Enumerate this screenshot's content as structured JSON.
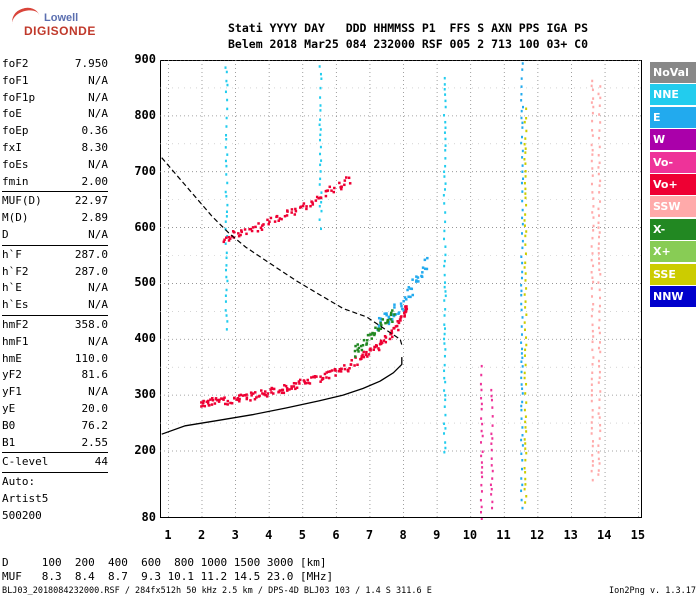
{
  "logo": {
    "line1": "Lowell",
    "line2": "DIGISONDE"
  },
  "header": {
    "line1": "Stati YYYY DAY   DDD HHMMSS P1  FFS S AXN PPS IGA PS",
    "line2": "Belem 2018 Mar25 084 232000 RSF 005 2 713 100 03+ C0"
  },
  "params": {
    "group1": [
      [
        "foF2",
        "7.950"
      ],
      [
        "foF1",
        "N/A"
      ],
      [
        "foF1p",
        "N/A"
      ],
      [
        "foE",
        "N/A"
      ],
      [
        "foEp",
        "0.36"
      ],
      [
        "fxI",
        "8.30"
      ],
      [
        "foEs",
        "N/A"
      ],
      [
        "fmin",
        "2.00"
      ]
    ],
    "group2": [
      [
        "MUF(D)",
        "22.97"
      ],
      [
        "M(D)",
        "2.89"
      ],
      [
        "D",
        "N/A"
      ]
    ],
    "group3": [
      [
        "h`F",
        "287.0"
      ],
      [
        "h`F2",
        "287.0"
      ],
      [
        "h`E",
        "N/A"
      ],
      [
        "h`Es",
        "N/A"
      ]
    ],
    "group4": [
      [
        "hmF2",
        "358.0"
      ],
      [
        "hmF1",
        "N/A"
      ],
      [
        "hmE",
        "110.0"
      ],
      [
        "yF2",
        "81.6"
      ],
      [
        "yF1",
        "N/A"
      ],
      [
        "yE",
        "20.0"
      ],
      [
        "B0",
        "76.2"
      ],
      [
        "B1",
        "2.55"
      ]
    ],
    "group5": [
      [
        "C-level",
        "44"
      ]
    ],
    "group6": [
      "Auto:",
      "Artist5",
      "500200"
    ]
  },
  "legend": [
    {
      "label": "NoVal",
      "color": "#888888"
    },
    {
      "label": "NNE",
      "color": "#22ccee"
    },
    {
      "label": "E",
      "color": "#22aaee"
    },
    {
      "label": "W",
      "color": "#aa00aa"
    },
    {
      "label": "Vo-",
      "color": "#ee3399"
    },
    {
      "label": "Vo+",
      "color": "#ee0033"
    },
    {
      "label": "SSW",
      "color": "#ffaaaa"
    },
    {
      "label": "X-",
      "color": "#228822"
    },
    {
      "label": "X+",
      "color": "#88cc55"
    },
    {
      "label": "SSE",
      "color": "#cccc00"
    },
    {
      "label": "NNW",
      "color": "#0000cc"
    }
  ],
  "footer": {
    "line1": "D     100  200  400  600  800 1000 1500 3000 [km]",
    "line2": "MUF   8.3  8.4  8.7  9.3 10.1 11.2 14.5 23.0 [MHz]",
    "file": "BLJ03_2018084232000.RSF / 284fx512h 50 kHz 2.5 km / DPS-4D BLJ03 103 / 1.4 S 311.6 E",
    "version": "Ion2Png v. 1.3.17"
  },
  "chart_data": {
    "type": "scatter",
    "xlim": [
      0.75,
      15.1
    ],
    "ylim": [
      80,
      900
    ],
    "x_ticks": [
      1,
      2,
      3,
      4,
      5,
      6,
      7,
      8,
      9,
      10,
      11,
      12,
      13,
      14,
      15
    ],
    "y_ticks": [
      80,
      200,
      300,
      400,
      500,
      600,
      700,
      800,
      900
    ],
    "x_major_grid": [
      1,
      2,
      3,
      4,
      5,
      6,
      7,
      8,
      9,
      10,
      11,
      12,
      13,
      14,
      15
    ],
    "y_major_grid": [
      200,
      300,
      400,
      500,
      600,
      700,
      800,
      900
    ],
    "y_minor_grid": [
      250,
      350,
      450,
      550,
      650,
      750,
      850
    ],
    "grid": true,
    "grid_style": "dotted",
    "profile_curve": {
      "name": "profile",
      "x": [
        0.8,
        1.5,
        2.5,
        3.5,
        4.5,
        5.5,
        6.2,
        6.8,
        7.3,
        7.7,
        7.95,
        7.95
      ],
      "y": [
        230,
        245,
        255,
        265,
        277,
        290,
        300,
        312,
        325,
        340,
        355,
        368
      ]
    },
    "dashed_curve": {
      "name": "dashed",
      "x": [
        0.8,
        1.3,
        1.8,
        2.3,
        2.8,
        3.3,
        3.8,
        4.3,
        4.8,
        5.5,
        6.2,
        6.9,
        7.4,
        7.9,
        7.95
      ],
      "y": [
        725,
        690,
        655,
        620,
        590,
        565,
        545,
        525,
        505,
        480,
        455,
        440,
        420,
        400,
        390
      ]
    },
    "o_trace": {
      "color": "#ee0033",
      "x": [
        1.9,
        2.3,
        2.8,
        3.3,
        3.8,
        4.3,
        4.8,
        5.3,
        5.8,
        6.3,
        6.8,
        7.2,
        7.6,
        7.9,
        8.1
      ],
      "y": [
        285,
        290,
        292,
        298,
        305,
        312,
        320,
        330,
        340,
        350,
        372,
        390,
        410,
        440,
        460
      ]
    },
    "x_trace": {
      "color": "#228822",
      "x": [
        6.5,
        6.8,
        7.1,
        7.4,
        7.7
      ],
      "y": [
        380,
        395,
        410,
        430,
        450
      ]
    },
    "multihop_trace": {
      "color": "#ee0033",
      "x": [
        2.6,
        3.0,
        3.5,
        4.0,
        4.5,
        5.0,
        5.5,
        6.0,
        6.4
      ],
      "y": [
        582,
        590,
        600,
        612,
        625,
        640,
        660,
        675,
        690
      ]
    },
    "e_echo": {
      "color": "#22aaee",
      "x": [
        7.2,
        7.5,
        7.8,
        8.1,
        8.4,
        8.7
      ],
      "y": [
        430,
        440,
        455,
        480,
        510,
        545
      ]
    },
    "vertical_streaks": [
      {
        "x": 10.3,
        "color": "#ee3399",
        "y": [
          80,
          360
        ]
      },
      {
        "x": 10.6,
        "color": "#ee3399",
        "y": [
          100,
          320
        ]
      },
      {
        "x": 11.5,
        "color": "#22aaee",
        "y": [
          100,
          900
        ]
      },
      {
        "x": 11.6,
        "color": "#cccc00",
        "y": [
          110,
          820
        ]
      },
      {
        "x": 13.6,
        "color": "#ffaaaa",
        "y": [
          150,
          880
        ]
      },
      {
        "x": 13.8,
        "color": "#ffaaaa",
        "y": [
          160,
          860
        ]
      },
      {
        "x": 9.2,
        "color": "#22ccee",
        "y": [
          200,
          880
        ]
      },
      {
        "x": 5.5,
        "color": "#22ccee",
        "y": [
          600,
          900
        ]
      },
      {
        "x": 2.7,
        "color": "#22ccee",
        "y": [
          420,
          900
        ]
      }
    ],
    "x_tick_labels": [
      "1",
      "2",
      "3",
      "4",
      "5",
      "6",
      "7",
      "8",
      "9",
      "10",
      "11",
      "12",
      "13",
      "14",
      "15"
    ],
    "y_tick_labels": [
      "80",
      "200",
      "300",
      "400",
      "500",
      "600",
      "700",
      "800",
      "900"
    ]
  }
}
